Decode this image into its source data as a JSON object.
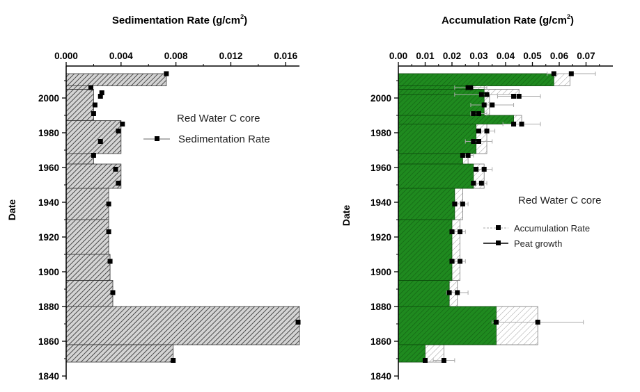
{
  "chart_data": [
    {
      "type": "bar",
      "title_main": "Sedimentation Rate (g/cm",
      "title_sup": "2",
      "title_end": ")",
      "ylabel": "Date",
      "xlim": [
        0.0,
        0.017
      ],
      "ylim": [
        1840,
        2016
      ],
      "xticks": [
        "0.000",
        "0.004",
        "0.008",
        "0.012",
        "0.016"
      ],
      "xtick_values": [
        0.0,
        0.004,
        0.008,
        0.012,
        0.016
      ],
      "yticks": [
        "1840",
        "1860",
        "1880",
        "1900",
        "1920",
        "1940",
        "1960",
        "1980",
        "2000"
      ],
      "ytick_values": [
        1840,
        1860,
        1880,
        1900,
        1920,
        1940,
        1960,
        1980,
        2000
      ],
      "grid": false,
      "legend_title": "Red Water C core",
      "legend_position": "upper-right",
      "series": [
        {
          "name": "Sedimentation Rate",
          "color": "#555555",
          "fill": "hatched",
          "steps": [
            {
              "y0": 2007,
              "y1": 2014,
              "value": 0.0073
            },
            {
              "y0": 2005,
              "y1": 2007,
              "value": 0.0017
            },
            {
              "y0": 1987,
              "y1": 2005,
              "value": 0.002
            },
            {
              "y0": 1968,
              "y1": 1987,
              "value": 0.004
            },
            {
              "y0": 1962,
              "y1": 1968,
              "value": 0.002
            },
            {
              "y0": 1948,
              "y1": 1962,
              "value": 0.004
            },
            {
              "y0": 1930,
              "y1": 1948,
              "value": 0.0031
            },
            {
              "y0": 1910,
              "y1": 1930,
              "value": 0.0031
            },
            {
              "y0": 1895,
              "y1": 1910,
              "value": 0.0032
            },
            {
              "y0": 1880,
              "y1": 1895,
              "value": 0.0034
            },
            {
              "y0": 1858,
              "y1": 1880,
              "value": 0.017
            },
            {
              "y0": 1848,
              "y1": 1858,
              "value": 0.0078
            }
          ],
          "points": [
            {
              "date": 2014,
              "value": 0.0073
            },
            {
              "date": 2006,
              "value": 0.0018
            },
            {
              "date": 2003,
              "value": 0.0026
            },
            {
              "date": 2001,
              "value": 0.0025
            },
            {
              "date": 1996,
              "value": 0.0021
            },
            {
              "date": 1991,
              "value": 0.002
            },
            {
              "date": 1985,
              "value": 0.0041
            },
            {
              "date": 1981,
              "value": 0.0038
            },
            {
              "date": 1975,
              "value": 0.0025
            },
            {
              "date": 1967,
              "value": 0.002
            },
            {
              "date": 1959,
              "value": 0.0036
            },
            {
              "date": 1951,
              "value": 0.0038
            },
            {
              "date": 1939,
              "value": 0.0031
            },
            {
              "date": 1923,
              "value": 0.0031
            },
            {
              "date": 1906,
              "value": 0.0032
            },
            {
              "date": 1888,
              "value": 0.0034
            },
            {
              "date": 1871,
              "value": 0.0169
            },
            {
              "date": 1849,
              "value": 0.0078
            }
          ]
        }
      ]
    },
    {
      "type": "bar",
      "title_main": "Accumulation Rate (g/cm",
      "title_sup": "2",
      "title_end": ")",
      "ylabel": "Date",
      "xlim": [
        0.0,
        0.08
      ],
      "ylim": [
        1840,
        2016
      ],
      "xticks": [
        "0.00",
        "0.01",
        "0.02",
        "0.03",
        "0.04",
        "0.05",
        "0.06",
        "0.07"
      ],
      "xtick_values": [
        0.0,
        0.01,
        0.02,
        0.03,
        0.04,
        0.05,
        0.06,
        0.07
      ],
      "yticks": [
        "1840",
        "1860",
        "1880",
        "1900",
        "1920",
        "1940",
        "1960",
        "1980",
        "2000"
      ],
      "ytick_values": [
        1840,
        1860,
        1880,
        1900,
        1920,
        1940,
        1960,
        1980,
        2000
      ],
      "grid": false,
      "legend_title": "Red Water C core",
      "legend_position": "right",
      "series": [
        {
          "name": "Accumulation Rate",
          "color": "#888888",
          "fill": "hatched",
          "steps": [
            {
              "y0": 2007,
              "y1": 2014,
              "value": 0.064
            },
            {
              "y0": 2005,
              "y1": 2007,
              "value": 0.032
            },
            {
              "y0": 2002,
              "y1": 2005,
              "value": 0.045
            },
            {
              "y0": 1990,
              "y1": 2002,
              "value": 0.034
            },
            {
              "y0": 1985,
              "y1": 1990,
              "value": 0.046
            },
            {
              "y0": 1968,
              "y1": 1985,
              "value": 0.033
            },
            {
              "y0": 1962,
              "y1": 1968,
              "value": 0.026
            },
            {
              "y0": 1948,
              "y1": 1962,
              "value": 0.032
            },
            {
              "y0": 1930,
              "y1": 1948,
              "value": 0.024
            },
            {
              "y0": 1895,
              "y1": 1930,
              "value": 0.023
            },
            {
              "y0": 1880,
              "y1": 1895,
              "value": 0.022
            },
            {
              "y0": 1858,
              "y1": 1880,
              "value": 0.052
            },
            {
              "y0": 1848,
              "y1": 1858,
              "value": 0.017
            }
          ],
          "points": [
            {
              "date": 2014,
              "value": 0.0645,
              "err": 0.009
            },
            {
              "date": 2006,
              "value": 0.027,
              "err": 0.006
            },
            {
              "date": 2002,
              "value": 0.033,
              "err": 0.012
            },
            {
              "date": 2001,
              "value": 0.045,
              "err": 0.008
            },
            {
              "date": 1996,
              "value": 0.035,
              "err": 0.008
            },
            {
              "date": 1991,
              "value": 0.03,
              "err": 0.003
            },
            {
              "date": 1985,
              "value": 0.046,
              "err": 0.007
            },
            {
              "date": 1981,
              "value": 0.033,
              "err": 0.003
            },
            {
              "date": 1975,
              "value": 0.03,
              "err": 0.005
            },
            {
              "date": 1967,
              "value": 0.026,
              "err": 0.002
            },
            {
              "date": 1959,
              "value": 0.032,
              "err": 0.003
            },
            {
              "date": 1951,
              "value": 0.031,
              "err": 0.002
            },
            {
              "date": 1939,
              "value": 0.024,
              "err": 0.002
            },
            {
              "date": 1923,
              "value": 0.023,
              "err": 0.002
            },
            {
              "date": 1906,
              "value": 0.023,
              "err": 0.002
            },
            {
              "date": 1888,
              "value": 0.022,
              "err": 0.004
            },
            {
              "date": 1871,
              "value": 0.052,
              "err": 0.017
            },
            {
              "date": 1849,
              "value": 0.017,
              "err": 0.004
            }
          ]
        },
        {
          "name": "Peat growth",
          "color": "#1b7d1b",
          "fill": "solid-hatched",
          "steps": [
            {
              "y0": 2007,
              "y1": 2014,
              "value": 0.058
            },
            {
              "y0": 2005,
              "y1": 2007,
              "value": 0.026
            },
            {
              "y0": 2002,
              "y1": 2005,
              "value": 0.032
            },
            {
              "y0": 1990,
              "y1": 2002,
              "value": 0.032
            },
            {
              "y0": 1985,
              "y1": 1990,
              "value": 0.043
            },
            {
              "y0": 1968,
              "y1": 1985,
              "value": 0.029
            },
            {
              "y0": 1962,
              "y1": 1968,
              "value": 0.024
            },
            {
              "y0": 1948,
              "y1": 1962,
              "value": 0.028
            },
            {
              "y0": 1930,
              "y1": 1948,
              "value": 0.021
            },
            {
              "y0": 1895,
              "y1": 1930,
              "value": 0.02
            },
            {
              "y0": 1880,
              "y1": 1895,
              "value": 0.019
            },
            {
              "y0": 1858,
              "y1": 1880,
              "value": 0.0365
            },
            {
              "y0": 1848,
              "y1": 1858,
              "value": 0.01
            }
          ],
          "points": [
            {
              "date": 2014,
              "value": 0.058
            },
            {
              "date": 2006,
              "value": 0.026
            },
            {
              "date": 2002,
              "value": 0.031
            },
            {
              "date": 2001,
              "value": 0.043
            },
            {
              "date": 1996,
              "value": 0.032
            },
            {
              "date": 1991,
              "value": 0.028
            },
            {
              "date": 1985,
              "value": 0.043
            },
            {
              "date": 1981,
              "value": 0.03
            },
            {
              "date": 1975,
              "value": 0.028
            },
            {
              "date": 1967,
              "value": 0.024
            },
            {
              "date": 1959,
              "value": 0.029
            },
            {
              "date": 1951,
              "value": 0.028
            },
            {
              "date": 1939,
              "value": 0.021
            },
            {
              "date": 1923,
              "value": 0.02
            },
            {
              "date": 1906,
              "value": 0.02
            },
            {
              "date": 1888,
              "value": 0.019
            },
            {
              "date": 1871,
              "value": 0.0365
            },
            {
              "date": 1849,
              "value": 0.01
            }
          ]
        }
      ]
    }
  ]
}
